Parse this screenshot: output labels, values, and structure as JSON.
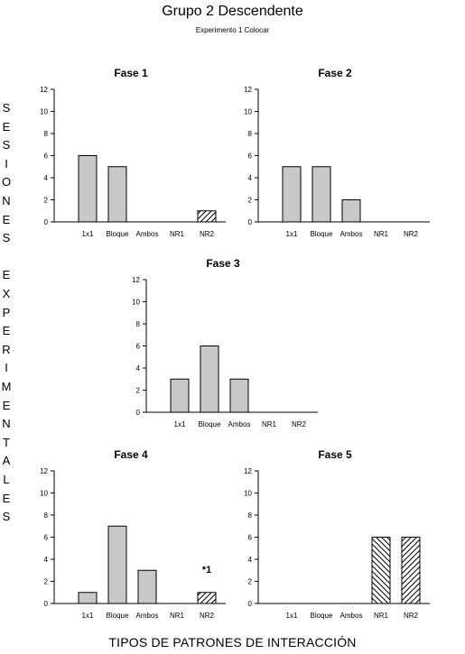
{
  "title": "Grupo 2 Descendente",
  "subtitle": "Experimento 1 Colocar",
  "ylabel_letters": [
    "S",
    "E",
    "S",
    "I",
    "O",
    "N",
    "E",
    "S",
    "",
    "E",
    "X",
    "P",
    "E",
    "R",
    "I",
    "M",
    "E",
    "N",
    "T",
    "A",
    "L",
    "E",
    "S"
  ],
  "xlabel": "TIPOS DE PATRONES DE INTERACCIÓN",
  "colors": {
    "solid": "#c8c8c8",
    "edge": "#000000"
  },
  "chart_data": [
    {
      "type": "bar",
      "title": "Fase 1",
      "categories": [
        "1x1",
        "Bloque",
        "Ambos",
        "NR1",
        "NR2"
      ],
      "values": [
        6,
        5,
        0,
        0,
        1
      ],
      "fill": [
        "solid",
        "solid",
        "solid",
        "solid",
        "hatch-fwd"
      ],
      "ylim": [
        0,
        12
      ],
      "yticks": [
        0,
        2,
        4,
        6,
        8,
        10,
        12
      ],
      "annotation": ""
    },
    {
      "type": "bar",
      "title": "Fase 2",
      "categories": [
        "1x1",
        "Bloque",
        "Ambos",
        "NR1",
        "NR2"
      ],
      "values": [
        5,
        5,
        2,
        0,
        0
      ],
      "fill": [
        "solid",
        "solid",
        "solid",
        "solid",
        "hatch-fwd"
      ],
      "ylim": [
        0,
        12
      ],
      "yticks": [
        0,
        2,
        4,
        6,
        8,
        10,
        12
      ],
      "annotation": ""
    },
    {
      "type": "bar",
      "title": "Fase 3",
      "categories": [
        "1x1",
        "Bloque",
        "Ambos",
        "NR1",
        "NR2"
      ],
      "values": [
        3,
        6,
        3,
        0,
        0
      ],
      "fill": [
        "solid",
        "solid",
        "solid",
        "solid",
        "hatch-fwd"
      ],
      "ylim": [
        0,
        12
      ],
      "yticks": [
        0,
        2,
        4,
        6,
        8,
        10,
        12
      ],
      "annotation": ""
    },
    {
      "type": "bar",
      "title": "Fase 4",
      "categories": [
        "1x1",
        "Bloque",
        "Ambos",
        "NR1",
        "NR2"
      ],
      "values": [
        1,
        7,
        3,
        0,
        1
      ],
      "fill": [
        "solid",
        "solid",
        "solid",
        "solid",
        "hatch-fwd"
      ],
      "ylim": [
        0,
        12
      ],
      "yticks": [
        0,
        2,
        4,
        6,
        8,
        10,
        12
      ],
      "annotation": "*1"
    },
    {
      "type": "bar",
      "title": "Fase 5",
      "categories": [
        "1x1",
        "Bloque",
        "Ambos",
        "NR1",
        "NR2"
      ],
      "values": [
        0,
        0,
        0,
        6,
        6
      ],
      "fill": [
        "solid",
        "solid",
        "solid",
        "hatch-back",
        "hatch-fwd"
      ],
      "ylim": [
        0,
        12
      ],
      "yticks": [
        0,
        2,
        4,
        6,
        8,
        10,
        12
      ],
      "annotation": ""
    }
  ]
}
